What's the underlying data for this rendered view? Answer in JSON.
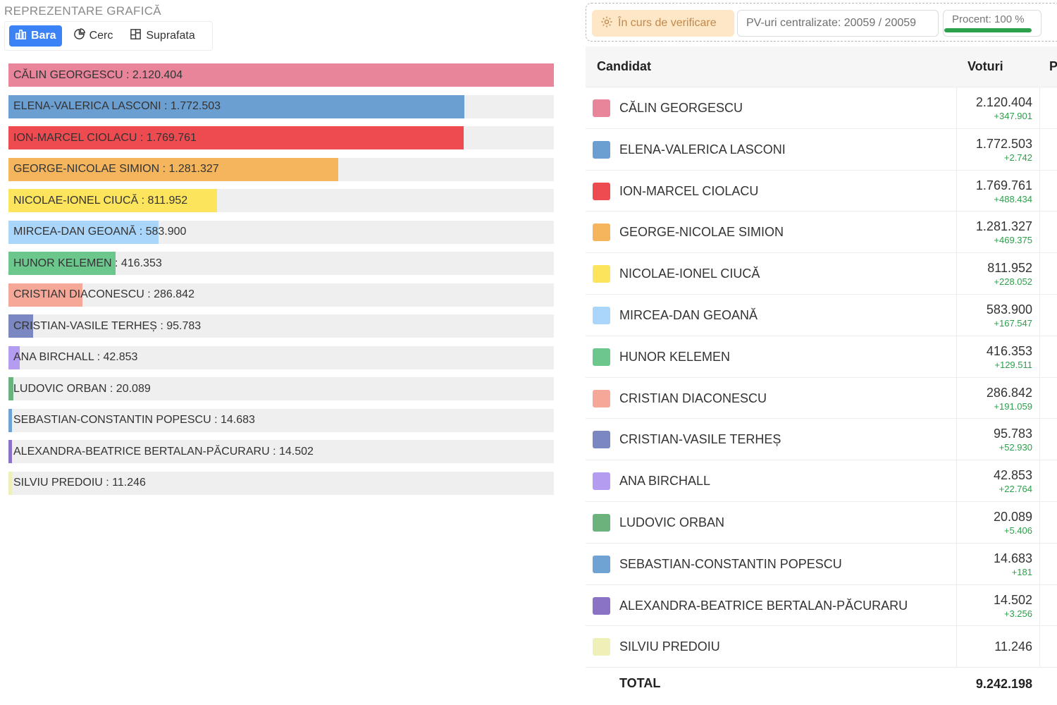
{
  "section_title": "REPREZENTARE GRAFICĂ",
  "view_tabs": [
    {
      "label": "Bara",
      "icon": "bar-chart-icon",
      "active": true
    },
    {
      "label": "Cerc",
      "icon": "pie-chart-icon",
      "active": false
    },
    {
      "label": "Suprafata",
      "icon": "area-chart-icon",
      "active": false
    }
  ],
  "status": {
    "verification": "În curs de verificare",
    "pv": "PV-uri centralizate: 20059 / 20059",
    "procent": "Procent: 100 %",
    "procent_value": 100
  },
  "table": {
    "col_candidate": "Candidat",
    "col_votes": "Voturi",
    "col_extra": "P",
    "total_label": "TOTAL",
    "total_value": "9.242.198"
  },
  "chart_data": {
    "type": "bar",
    "orientation": "horizontal",
    "xlim": [
      0,
      2120404
    ],
    "categories": [
      "CĂLIN GEORGESCU",
      "ELENA-VALERICA LASCONI",
      "ION-MARCEL CIOLACU",
      "GEORGE-NICOLAE SIMION",
      "NICOLAE-IONEL CIUCĂ",
      "MIRCEA-DAN GEOANĂ",
      "HUNOR KELEMEN",
      "CRISTIAN DIACONESCU",
      "CRISTIAN-VASILE TERHEȘ",
      "ANA BIRCHALL",
      "LUDOVIC ORBAN",
      "SEBASTIAN-CONSTANTIN POPESCU",
      "ALEXANDRA-BEATRICE BERTALAN-PĂCURARU",
      "SILVIU PREDOIU"
    ],
    "values": [
      2120404,
      1772503,
      1769761,
      1281327,
      811952,
      583900,
      416353,
      286842,
      95783,
      42853,
      20089,
      14683,
      14502,
      11246
    ]
  },
  "candidates": [
    {
      "name": "CĂLIN GEORGESCU",
      "votes": "2.120.404",
      "delta": "+347.901",
      "color": "#e9859b",
      "bar_label": "CĂLIN GEORGESCU : 2.120.404"
    },
    {
      "name": "ELENA-VALERICA LASCONI",
      "votes": "1.772.503",
      "delta": "+2.742",
      "color": "#6b9fd2",
      "bar_label": "ELENA-VALERICA LASCONI : 1.772.503"
    },
    {
      "name": "ION-MARCEL CIOLACU",
      "votes": "1.769.761",
      "delta": "+488.434",
      "color": "#ee4b51",
      "bar_label": "ION-MARCEL CIOLACU : 1.769.761"
    },
    {
      "name": "GEORGE-NICOLAE SIMION",
      "votes": "1.281.327",
      "delta": "+469.375",
      "color": "#f4b55c",
      "bar_label": "GEORGE-NICOLAE SIMION : 1.281.327"
    },
    {
      "name": "NICOLAE-IONEL CIUCĂ",
      "votes": "811.952",
      "delta": "+228.052",
      "color": "#fce45d",
      "bar_label": "NICOLAE-IONEL CIUCĂ : 811.952"
    },
    {
      "name": "MIRCEA-DAN GEOANĂ",
      "votes": "583.900",
      "delta": "+167.547",
      "color": "#a9d6fa",
      "bar_label": "MIRCEA-DAN GEOANĂ : 583.900"
    },
    {
      "name": "HUNOR KELEMEN",
      "votes": "416.353",
      "delta": "+129.511",
      "color": "#6bc78c",
      "bar_label": "HUNOR KELEMEN : 416.353"
    },
    {
      "name": "CRISTIAN DIACONESCU",
      "votes": "286.842",
      "delta": "+191.059",
      "color": "#f6a898",
      "bar_label": "CRISTIAN DIACONESCU : 286.842"
    },
    {
      "name": "CRISTIAN-VASILE TERHEȘ",
      "votes": "95.783",
      "delta": "+52.930",
      "color": "#7b87c0",
      "bar_label": "CRISTIAN-VASILE TERHEȘ : 95.783"
    },
    {
      "name": "ANA BIRCHALL",
      "votes": "42.853",
      "delta": "+22.764",
      "color": "#b49df0",
      "bar_label": "ANA BIRCHALL : 42.853"
    },
    {
      "name": "LUDOVIC ORBAN",
      "votes": "20.089",
      "delta": "+5.406",
      "color": "#6cb27d",
      "bar_label": "LUDOVIC ORBAN : 20.089"
    },
    {
      "name": "SEBASTIAN-CONSTANTIN POPESCU",
      "votes": "14.683",
      "delta": "+181",
      "color": "#6ea3d4",
      "bar_label": "SEBASTIAN-CONSTANTIN POPESCU : 14.683"
    },
    {
      "name": "ALEXANDRA-BEATRICE BERTALAN-PĂCURARU",
      "votes": "14.502",
      "delta": "+3.256",
      "color": "#8a72c4",
      "bar_label": "ALEXANDRA-BEATRICE BERTALAN-PĂCURARU : 14.502"
    },
    {
      "name": "SILVIU PREDOIU",
      "votes": "11.246",
      "delta": "",
      "color": "#eff0b8",
      "bar_label": "SILVIU PREDOIU : 11.246"
    }
  ]
}
